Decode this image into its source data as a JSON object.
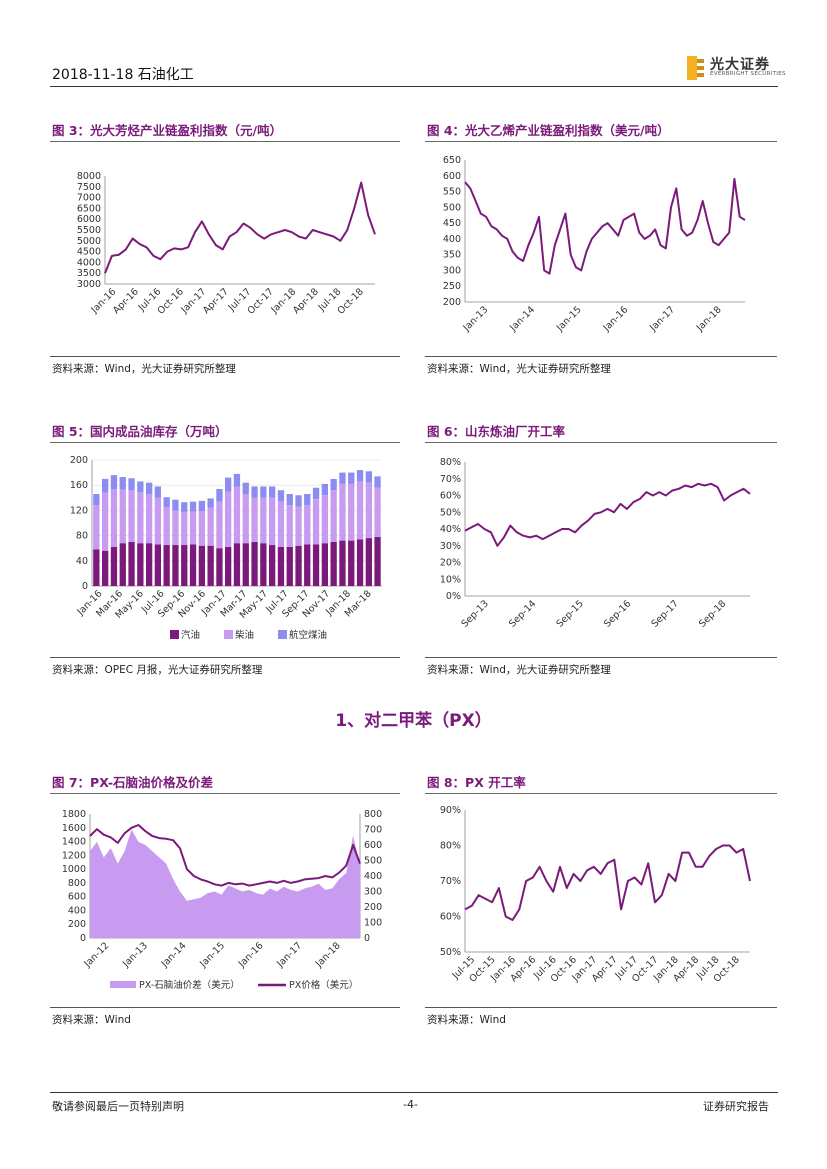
{
  "header": {
    "date_section": "2018-11-18  石油化工",
    "logo_text": "光大证券",
    "logo_sub": "EVERBRIGHT SECURITIES"
  },
  "figures": {
    "fig3": {
      "title": "图 3：光大芳烃产业链盈利指数（元/吨）",
      "source": "资料来源：Wind，光大证券研究所整理"
    },
    "fig4": {
      "title": "图 4：光大乙烯产业链盈利指数（美元/吨）",
      "source": "资料来源：Wind，光大证券研究所整理"
    },
    "fig5": {
      "title": "图 5：国内成品油库存（万吨）",
      "source": "资料来源：OPEC 月报，光大证券研究所整理"
    },
    "fig6": {
      "title": "图 6：山东炼油厂开工率",
      "source": "资料来源：Wind，光大证券研究所整理"
    },
    "fig7": {
      "title": "图 7：PX-石脑油价格及价差",
      "source": "资料来源：Wind"
    },
    "fig8": {
      "title": "图 8：PX 开工率",
      "source": "资料来源：Wind"
    }
  },
  "section": {
    "title": "1、对二甲苯（PX）"
  },
  "footer": {
    "left": "敬请参阅最后一页特别声明",
    "center": "-4-",
    "right": "证券研究报告"
  },
  "colors": {
    "purple": "#7b1a7b",
    "lavender": "#c79cf0",
    "blue": "#8d8cf0"
  },
  "chart_data": [
    {
      "id": "fig3",
      "type": "line",
      "title": "光大芳烃产业链盈利指数（元/吨）",
      "yticks": [
        "3000",
        "3500",
        "4000",
        "4500",
        "5000",
        "5500",
        "6000",
        "6500",
        "7000",
        "7500",
        "8000"
      ],
      "ylim": [
        3000,
        8000
      ],
      "xticks": [
        "Jan-16",
        "Apr-16",
        "Jul-16",
        "Oct-16",
        "Jan-17",
        "Apr-17",
        "Jul-17",
        "Oct-17",
        "Jan-18",
        "Apr-18",
        "Jul-18",
        "Oct-18"
      ],
      "series": [
        {
          "name": "盈利指数",
          "values": [
            3500,
            4300,
            4350,
            4600,
            5100,
            4850,
            4700,
            4300,
            4150,
            4500,
            4650,
            4600,
            4700,
            5400,
            5900,
            5300,
            4800,
            4600,
            5200,
            5400,
            5800,
            5600,
            5300,
            5100,
            5300,
            5400,
            5500,
            5400,
            5200,
            5100,
            5500,
            5400,
            5300,
            5200,
            5000,
            5500,
            6500,
            7700,
            6200,
            5300
          ]
        }
      ]
    },
    {
      "id": "fig4",
      "type": "line",
      "title": "光大乙烯产业链盈利指数（美元/吨）",
      "yticks": [
        "200",
        "250",
        "300",
        "350",
        "400",
        "450",
        "500",
        "550",
        "600",
        "650"
      ],
      "ylim": [
        200,
        650
      ],
      "xticks": [
        "Jan-13",
        "Jan-14",
        "Jan-15",
        "Jan-16",
        "Jan-17",
        "Jan-18"
      ],
      "series": [
        {
          "name": "盈利指数",
          "values": [
            580,
            560,
            520,
            480,
            470,
            440,
            430,
            410,
            400,
            360,
            340,
            330,
            380,
            420,
            470,
            300,
            290,
            380,
            430,
            480,
            350,
            310,
            300,
            360,
            400,
            420,
            440,
            450,
            430,
            410,
            460,
            470,
            480,
            420,
            400,
            410,
            430,
            380,
            370,
            500,
            560,
            430,
            410,
            420,
            460,
            520,
            450,
            390,
            380,
            400,
            420,
            590,
            470,
            460
          ]
        }
      ]
    },
    {
      "id": "fig5",
      "type": "bar",
      "title": "国内成品油库存（万吨）",
      "yticks": [
        "0",
        "40",
        "80",
        "120",
        "160",
        "200"
      ],
      "ylim": [
        0,
        200
      ],
      "xticks": [
        "Jan-16",
        "Mar-16",
        "May-16",
        "Jul-16",
        "Sep-16",
        "Nov-16",
        "Jan-17",
        "Mar-17",
        "May-17",
        "Jul-17",
        "Sep-17",
        "Nov-17",
        "Jan-18",
        "Mar-18"
      ],
      "legend": [
        "汽油",
        "柴油",
        "航空煤油"
      ],
      "series": [
        {
          "name": "汽油",
          "values": [
            58,
            56,
            62,
            68,
            70,
            68,
            68,
            66,
            65,
            65,
            65,
            66,
            64,
            64,
            60,
            62,
            68,
            68,
            70,
            68,
            65,
            62,
            62,
            64,
            66,
            66,
            68,
            70,
            72,
            72,
            74,
            76,
            78
          ]
        },
        {
          "name": "柴油",
          "values": [
            70,
            92,
            92,
            85,
            82,
            80,
            78,
            74,
            60,
            55,
            52,
            52,
            55,
            60,
            74,
            88,
            90,
            78,
            70,
            72,
            75,
            72,
            66,
            62,
            62,
            72,
            76,
            82,
            90,
            90,
            92,
            88,
            78
          ]
        },
        {
          "name": "航空煤油",
          "values": [
            18,
            22,
            22,
            20,
            19,
            18,
            18,
            18,
            16,
            17,
            16,
            16,
            16,
            15,
            20,
            22,
            20,
            18,
            18,
            18,
            18,
            18,
            18,
            18,
            18,
            18,
            18,
            18,
            18,
            18,
            18,
            18,
            18
          ]
        }
      ]
    },
    {
      "id": "fig6",
      "type": "line",
      "title": "山东炼油厂开工率",
      "yticks": [
        "0%",
        "10%",
        "20%",
        "30%",
        "40%",
        "50%",
        "60%",
        "70%",
        "80%"
      ],
      "ylim": [
        0,
        80
      ],
      "xticks": [
        "Sep-13",
        "Sep-14",
        "Sep-15",
        "Sep-16",
        "Sep-17",
        "Sep-18"
      ],
      "series": [
        {
          "name": "开工率",
          "values": [
            39,
            41,
            43,
            40,
            38,
            30,
            35,
            42,
            38,
            36,
            35,
            36,
            34,
            36,
            38,
            40,
            40,
            38,
            42,
            45,
            49,
            50,
            52,
            50,
            55,
            52,
            56,
            58,
            62,
            60,
            62,
            60,
            63,
            64,
            66,
            65,
            67,
            66,
            67,
            65,
            57,
            60,
            62,
            64,
            61
          ]
        }
      ]
    },
    {
      "id": "fig7",
      "type": "bar-line",
      "title": "PX-石脑油价格及价差",
      "yticks_left": [
        "0",
        "200",
        "400",
        "600",
        "800",
        "1000",
        "1200",
        "1400",
        "1600",
        "1800"
      ],
      "ylim_left": [
        0,
        1800
      ],
      "yticks_right": [
        "0",
        "100",
        "200",
        "300",
        "400",
        "500",
        "600",
        "700",
        "800"
      ],
      "ylim_right": [
        0,
        800
      ],
      "xticks": [
        "Jan-12",
        "Jan-13",
        "Jan-14",
        "Jan-15",
        "Jan-16",
        "Jan-17",
        "Jan-18"
      ],
      "legend": [
        "PX-石脑油价差（美元）",
        "PX价格（美元）"
      ],
      "series": [
        {
          "name": "PX-石脑油价差（美元）",
          "values": [
            560,
            620,
            520,
            580,
            480,
            560,
            700,
            620,
            600,
            560,
            520,
            480,
            380,
            300,
            240,
            250,
            260,
            290,
            300,
            280,
            340,
            320,
            300,
            310,
            290,
            280,
            320,
            300,
            330,
            310,
            300,
            320,
            330,
            350,
            310,
            320,
            380,
            420,
            660,
            470
          ]
        },
        {
          "name": "PX价格（美元）",
          "values": [
            1480,
            1580,
            1500,
            1460,
            1380,
            1520,
            1600,
            1640,
            1550,
            1480,
            1450,
            1440,
            1420,
            1300,
            1000,
            900,
            850,
            820,
            780,
            760,
            800,
            780,
            790,
            760,
            780,
            800,
            820,
            800,
            830,
            800,
            820,
            850,
            860,
            870,
            900,
            880,
            950,
            1050,
            1350,
            1080
          ]
        }
      ]
    },
    {
      "id": "fig8",
      "type": "line",
      "title": "PX 开工率",
      "yticks": [
        "50%",
        "60%",
        "70%",
        "80%",
        "90%"
      ],
      "ylim": [
        50,
        90
      ],
      "xticks": [
        "Jul-15",
        "Oct-15",
        "Jan-16",
        "Apr-16",
        "Jul-16",
        "Oct-16",
        "Jan-17",
        "Apr-17",
        "Jul-17",
        "Oct-17",
        "Jan-18",
        "Apr-18",
        "Jul-18",
        "Oct-18"
      ],
      "series": [
        {
          "name": "开工率",
          "values": [
            62,
            63,
            66,
            65,
            64,
            68,
            60,
            59,
            62,
            70,
            71,
            74,
            70,
            67,
            74,
            68,
            72,
            70,
            73,
            74,
            72,
            75,
            76,
            62,
            70,
            71,
            69,
            75,
            64,
            66,
            72,
            70,
            78,
            78,
            74,
            74,
            77,
            79,
            80,
            80,
            78,
            79,
            70
          ]
        }
      ]
    }
  ]
}
